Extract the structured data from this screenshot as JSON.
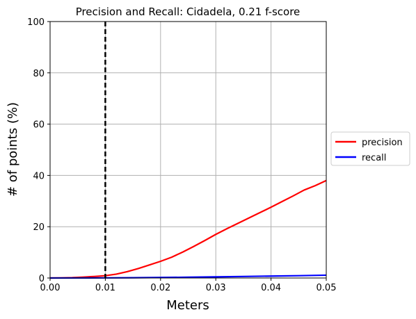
{
  "chart_data": {
    "type": "line",
    "title": "Precision and Recall: Cidadela, 0.21 f-score",
    "xlabel": "Meters",
    "ylabel": "# of points (%)",
    "xlim": [
      0.0,
      0.05
    ],
    "ylim": [
      0,
      100
    ],
    "xticks": [
      "0.00",
      "0.01",
      "0.02",
      "0.03",
      "0.04",
      "0.05"
    ],
    "yticks": [
      "0",
      "20",
      "40",
      "60",
      "80",
      "100"
    ],
    "grid": true,
    "legend_position": "right-outside",
    "threshold": {
      "x": 0.01,
      "style": "dashed",
      "color": "#000000"
    },
    "series": [
      {
        "name": "precision",
        "color": "#ff0000",
        "x": [
          0.0,
          0.002,
          0.004,
          0.006,
          0.008,
          0.01,
          0.012,
          0.014,
          0.016,
          0.018,
          0.02,
          0.022,
          0.024,
          0.026,
          0.028,
          0.03,
          0.032,
          0.034,
          0.036,
          0.038,
          0.04,
          0.042,
          0.044,
          0.046,
          0.048,
          0.05
        ],
        "y": [
          0.0,
          0.05,
          0.15,
          0.35,
          0.6,
          0.9,
          1.5,
          2.5,
          3.7,
          5.1,
          6.5,
          8.1,
          10.1,
          12.3,
          14.6,
          17.0,
          19.2,
          21.3,
          23.4,
          25.5,
          27.6,
          29.8,
          32.0,
          34.3,
          36.0,
          38.0
        ]
      },
      {
        "name": "recall",
        "color": "#0000ff",
        "x": [
          0.0,
          0.005,
          0.01,
          0.015,
          0.02,
          0.025,
          0.03,
          0.035,
          0.04,
          0.045,
          0.05
        ],
        "y": [
          0.0,
          0.02,
          0.05,
          0.1,
          0.2,
          0.3,
          0.45,
          0.6,
          0.75,
          0.9,
          1.1
        ]
      }
    ]
  }
}
